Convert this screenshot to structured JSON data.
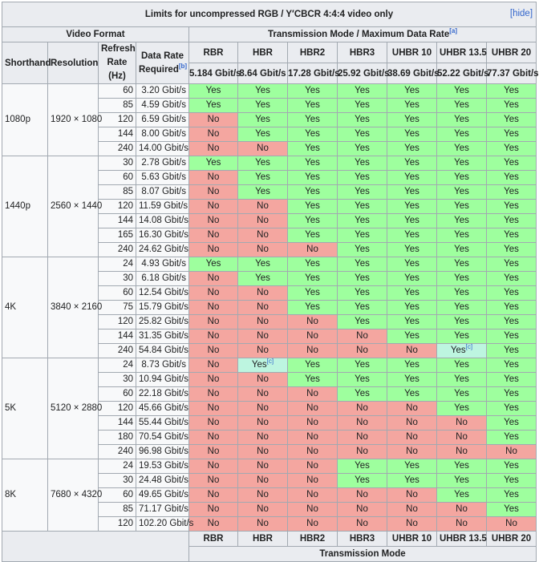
{
  "caption": "Limits for uncompressed RGB / Y′CBCR 4:4:4 video only",
  "hide_link": "[hide]",
  "video_format_header": "Video Format",
  "transmission_header": "Transmission Mode / Maximum Data Rate",
  "transmission_header_note": "[a]",
  "col_shorthand": "Shorthand",
  "col_resolution": "Resolution",
  "col_refresh": "Refresh Rate (Hz)",
  "col_datarate": "Data Rate Required",
  "col_datarate_note": "[b]",
  "modes": [
    "RBR",
    "HBR",
    "HBR2",
    "HBR3",
    "UHBR 10",
    "UHBR 13.5",
    "UHBR 20"
  ],
  "mode_rates": [
    "5.184 Gbit/s",
    "8.64 Gbit/s",
    "17.28 Gbit/s",
    "25.92 Gbit/s",
    "38.69 Gbit/s",
    "52.22 Gbit/s",
    "77.37 Gbit/s"
  ],
  "footer_label": "Transmission Mode",
  "cell_note": "[c]",
  "groups": [
    {
      "shorthand": "1080p",
      "resolution": "1920 × 1080",
      "rows": [
        {
          "hz": "60",
          "rate": "3.20 Gbit/s",
          "vals": [
            "Yes",
            "Yes",
            "Yes",
            "Yes",
            "Yes",
            "Yes",
            "Yes"
          ]
        },
        {
          "hz": "85",
          "rate": "4.59 Gbit/s",
          "vals": [
            "Yes",
            "Yes",
            "Yes",
            "Yes",
            "Yes",
            "Yes",
            "Yes"
          ]
        },
        {
          "hz": "120",
          "rate": "6.59 Gbit/s",
          "vals": [
            "No",
            "Yes",
            "Yes",
            "Yes",
            "Yes",
            "Yes",
            "Yes"
          ]
        },
        {
          "hz": "144",
          "rate": "8.00 Gbit/s",
          "vals": [
            "No",
            "Yes",
            "Yes",
            "Yes",
            "Yes",
            "Yes",
            "Yes"
          ]
        },
        {
          "hz": "240",
          "rate": "14.00 Gbit/s",
          "vals": [
            "No",
            "No",
            "Yes",
            "Yes",
            "Yes",
            "Yes",
            "Yes"
          ]
        }
      ]
    },
    {
      "shorthand": "1440p",
      "resolution": "2560 × 1440",
      "rows": [
        {
          "hz": "30",
          "rate": "2.78 Gbit/s",
          "vals": [
            "Yes",
            "Yes",
            "Yes",
            "Yes",
            "Yes",
            "Yes",
            "Yes"
          ]
        },
        {
          "hz": "60",
          "rate": "5.63 Gbit/s",
          "vals": [
            "No",
            "Yes",
            "Yes",
            "Yes",
            "Yes",
            "Yes",
            "Yes"
          ]
        },
        {
          "hz": "85",
          "rate": "8.07 Gbit/s",
          "vals": [
            "No",
            "Yes",
            "Yes",
            "Yes",
            "Yes",
            "Yes",
            "Yes"
          ]
        },
        {
          "hz": "120",
          "rate": "11.59 Gbit/s",
          "vals": [
            "No",
            "No",
            "Yes",
            "Yes",
            "Yes",
            "Yes",
            "Yes"
          ]
        },
        {
          "hz": "144",
          "rate": "14.08 Gbit/s",
          "vals": [
            "No",
            "No",
            "Yes",
            "Yes",
            "Yes",
            "Yes",
            "Yes"
          ]
        },
        {
          "hz": "165",
          "rate": "16.30 Gbit/s",
          "vals": [
            "No",
            "No",
            "Yes",
            "Yes",
            "Yes",
            "Yes",
            "Yes"
          ]
        },
        {
          "hz": "240",
          "rate": "24.62 Gbit/s",
          "vals": [
            "No",
            "No",
            "No",
            "Yes",
            "Yes",
            "Yes",
            "Yes"
          ]
        }
      ]
    },
    {
      "shorthand": "4K",
      "resolution": "3840 × 2160",
      "rows": [
        {
          "hz": "24",
          "rate": "4.93 Gbit/s",
          "vals": [
            "Yes",
            "Yes",
            "Yes",
            "Yes",
            "Yes",
            "Yes",
            "Yes"
          ]
        },
        {
          "hz": "30",
          "rate": "6.18 Gbit/s",
          "vals": [
            "No",
            "Yes",
            "Yes",
            "Yes",
            "Yes",
            "Yes",
            "Yes"
          ]
        },
        {
          "hz": "60",
          "rate": "12.54 Gbit/s",
          "vals": [
            "No",
            "No",
            "Yes",
            "Yes",
            "Yes",
            "Yes",
            "Yes"
          ]
        },
        {
          "hz": "75",
          "rate": "15.79 Gbit/s",
          "vals": [
            "No",
            "No",
            "Yes",
            "Yes",
            "Yes",
            "Yes",
            "Yes"
          ]
        },
        {
          "hz": "120",
          "rate": "25.82 Gbit/s",
          "vals": [
            "No",
            "No",
            "No",
            "Yes",
            "Yes",
            "Yes",
            "Yes"
          ]
        },
        {
          "hz": "144",
          "rate": "31.35 Gbit/s",
          "vals": [
            "No",
            "No",
            "No",
            "No",
            "Yes",
            "Yes",
            "Yes"
          ]
        },
        {
          "hz": "240",
          "rate": "54.84 Gbit/s",
          "vals": [
            "No",
            "No",
            "No",
            "No",
            "No",
            "Yes*",
            "Yes"
          ]
        }
      ]
    },
    {
      "shorthand": "5K",
      "resolution": "5120 × 2880",
      "rows": [
        {
          "hz": "24",
          "rate": "8.73 Gbit/s",
          "vals": [
            "No",
            "Yes*",
            "Yes",
            "Yes",
            "Yes",
            "Yes",
            "Yes"
          ]
        },
        {
          "hz": "30",
          "rate": "10.94 Gbit/s",
          "vals": [
            "No",
            "No",
            "Yes",
            "Yes",
            "Yes",
            "Yes",
            "Yes"
          ]
        },
        {
          "hz": "60",
          "rate": "22.18 Gbit/s",
          "vals": [
            "No",
            "No",
            "No",
            "Yes",
            "Yes",
            "Yes",
            "Yes"
          ]
        },
        {
          "hz": "120",
          "rate": "45.66 Gbit/s",
          "vals": [
            "No",
            "No",
            "No",
            "No",
            "No",
            "Yes",
            "Yes"
          ]
        },
        {
          "hz": "144",
          "rate": "55.44 Gbit/s",
          "vals": [
            "No",
            "No",
            "No",
            "No",
            "No",
            "No",
            "Yes"
          ]
        },
        {
          "hz": "180",
          "rate": "70.54 Gbit/s",
          "vals": [
            "No",
            "No",
            "No",
            "No",
            "No",
            "No",
            "Yes"
          ]
        },
        {
          "hz": "240",
          "rate": "96.98 Gbit/s",
          "vals": [
            "No",
            "No",
            "No",
            "No",
            "No",
            "No",
            "No"
          ]
        }
      ]
    },
    {
      "shorthand": "8K",
      "resolution": "7680 × 4320",
      "rows": [
        {
          "hz": "24",
          "rate": "19.53 Gbit/s",
          "vals": [
            "No",
            "No",
            "No",
            "Yes",
            "Yes",
            "Yes",
            "Yes"
          ]
        },
        {
          "hz": "30",
          "rate": "24.48 Gbit/s",
          "vals": [
            "No",
            "No",
            "No",
            "Yes",
            "Yes",
            "Yes",
            "Yes"
          ]
        },
        {
          "hz": "60",
          "rate": "49.65 Gbit/s",
          "vals": [
            "No",
            "No",
            "No",
            "No",
            "No",
            "Yes",
            "Yes"
          ]
        },
        {
          "hz": "85",
          "rate": "71.17 Gbit/s",
          "vals": [
            "No",
            "No",
            "No",
            "No",
            "No",
            "No",
            "Yes"
          ]
        },
        {
          "hz": "120",
          "rate": "102.20 Gbit/s",
          "vals": [
            "No",
            "No",
            "No",
            "No",
            "No",
            "No",
            "No"
          ]
        }
      ]
    }
  ],
  "colors": {
    "yes": "#9eff9e",
    "no": "#f4a6a0",
    "conditional": "#bdf5e0",
    "header": "#eaecf0"
  }
}
